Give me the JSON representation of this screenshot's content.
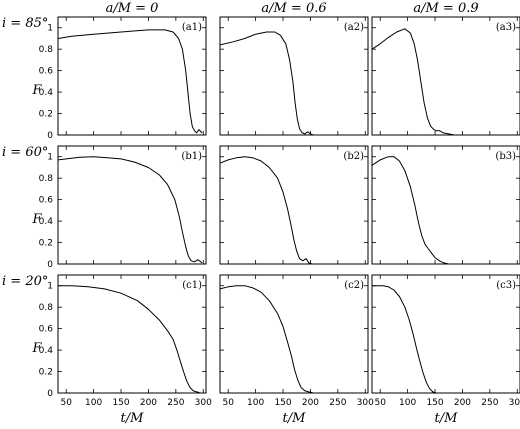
{
  "figure": {
    "column_titles": [
      "a/M = 0",
      "a/M = 0.6",
      "a/M = 0.9"
    ],
    "row_titles": [
      "i = 85°",
      "i = 60°",
      "i = 20°"
    ],
    "ylabel": "F",
    "xlabel": "t/M"
  },
  "chart_data": [
    {
      "type": "line",
      "label": "(a1)",
      "xlim": [
        35,
        305
      ],
      "ylim": [
        0,
        1.1
      ],
      "x": [
        35,
        60,
        100,
        150,
        200,
        230,
        245,
        255,
        262,
        268,
        272,
        276,
        280,
        284,
        288,
        292,
        298
      ],
      "y": [
        0.9,
        0.92,
        0.94,
        0.96,
        0.98,
        0.98,
        0.96,
        0.9,
        0.8,
        0.6,
        0.4,
        0.2,
        0.08,
        0.04,
        0.02,
        0.05,
        0.02
      ]
    },
    {
      "type": "line",
      "label": "(a2)",
      "xlim": [
        35,
        305
      ],
      "ylim": [
        0,
        1.1
      ],
      "x": [
        35,
        60,
        80,
        100,
        120,
        135,
        145,
        155,
        162,
        168,
        172,
        176,
        180,
        185,
        190,
        195,
        200,
        205
      ],
      "y": [
        0.84,
        0.87,
        0.9,
        0.94,
        0.96,
        0.96,
        0.93,
        0.85,
        0.7,
        0.5,
        0.3,
        0.15,
        0.06,
        0.02,
        0.01,
        0.03,
        0.01,
        0.0
      ]
    },
    {
      "type": "line",
      "label": "(a3)",
      "xlim": [
        35,
        305
      ],
      "ylim": [
        0,
        1.1
      ],
      "x": [
        35,
        50,
        65,
        80,
        95,
        105,
        112,
        118,
        124,
        130,
        136,
        142,
        148,
        152,
        158,
        165,
        175,
        185
      ],
      "y": [
        0.8,
        0.85,
        0.91,
        0.96,
        0.99,
        0.95,
        0.85,
        0.7,
        0.5,
        0.3,
        0.16,
        0.08,
        0.05,
        0.04,
        0.04,
        0.02,
        0.01,
        0.0
      ]
    },
    {
      "type": "line",
      "label": "(b1)",
      "xlim": [
        35,
        305
      ],
      "ylim": [
        0,
        1.1
      ],
      "x": [
        35,
        50,
        75,
        100,
        125,
        150,
        175,
        200,
        220,
        235,
        248,
        256,
        262,
        268,
        273,
        278,
        284,
        290,
        298
      ],
      "y": [
        0.97,
        0.98,
        0.995,
        1.0,
        0.99,
        0.98,
        0.95,
        0.9,
        0.83,
        0.74,
        0.6,
        0.45,
        0.3,
        0.16,
        0.07,
        0.03,
        0.02,
        0.04,
        0.01
      ]
    },
    {
      "type": "line",
      "label": "(b2)",
      "xlim": [
        35,
        305
      ],
      "ylim": [
        0,
        1.1
      ],
      "x": [
        35,
        50,
        65,
        80,
        95,
        110,
        125,
        140,
        150,
        158,
        165,
        170,
        175,
        180,
        186,
        192,
        197,
        203
      ],
      "y": [
        0.94,
        0.97,
        0.99,
        1.0,
        0.99,
        0.96,
        0.9,
        0.8,
        0.67,
        0.52,
        0.35,
        0.22,
        0.12,
        0.05,
        0.03,
        0.05,
        0.01,
        0.0
      ]
    },
    {
      "type": "line",
      "label": "(b3)",
      "xlim": [
        35,
        305
      ],
      "ylim": [
        0,
        1.1
      ],
      "x": [
        35,
        50,
        65,
        75,
        85,
        95,
        105,
        113,
        120,
        126,
        132,
        138,
        144,
        150,
        158,
        166,
        175
      ],
      "y": [
        0.92,
        0.97,
        1.0,
        1.0,
        0.96,
        0.87,
        0.72,
        0.55,
        0.38,
        0.26,
        0.18,
        0.14,
        0.1,
        0.06,
        0.03,
        0.01,
        0.0
      ]
    },
    {
      "type": "line",
      "label": "(c1)",
      "xlim": [
        35,
        305
      ],
      "ylim": [
        0,
        1.1
      ],
      "x": [
        35,
        60,
        90,
        120,
        150,
        180,
        200,
        220,
        235,
        245,
        252,
        258,
        264,
        270,
        276,
        282,
        288,
        295
      ],
      "y": [
        1.0,
        1.0,
        0.99,
        0.97,
        0.93,
        0.86,
        0.78,
        0.68,
        0.58,
        0.5,
        0.4,
        0.3,
        0.2,
        0.11,
        0.05,
        0.02,
        0.01,
        0.0
      ]
    },
    {
      "type": "line",
      "label": "(c2)",
      "xlim": [
        35,
        305
      ],
      "ylim": [
        0,
        1.1
      ],
      "x": [
        35,
        50,
        65,
        80,
        95,
        110,
        125,
        140,
        150,
        158,
        165,
        171,
        177,
        183,
        190,
        197,
        205
      ],
      "y": [
        0.97,
        0.99,
        1.0,
        1.0,
        0.98,
        0.94,
        0.86,
        0.74,
        0.62,
        0.48,
        0.35,
        0.22,
        0.12,
        0.05,
        0.02,
        0.01,
        0.0
      ]
    },
    {
      "type": "line",
      "label": "(c3)",
      "xlim": [
        35,
        305
      ],
      "ylim": [
        0,
        1.1
      ],
      "x": [
        35,
        45,
        55,
        65,
        75,
        85,
        95,
        103,
        110,
        116,
        122,
        128,
        134,
        140,
        146,
        152
      ],
      "y": [
        1.0,
        1.0,
        1.0,
        0.99,
        0.96,
        0.9,
        0.8,
        0.68,
        0.55,
        0.42,
        0.3,
        0.19,
        0.1,
        0.04,
        0.01,
        0.0
      ]
    }
  ],
  "axes": {
    "xticks": [
      50,
      100,
      150,
      200,
      250,
      300
    ],
    "xticklabels": [
      "50",
      "100",
      "150",
      "200",
      "250",
      "300"
    ],
    "yticks": [
      0,
      0.2,
      0.4,
      0.6,
      0.8,
      1.0
    ],
    "yticklabels": [
      "0",
      "0.2",
      "0.4",
      "0.6",
      "0.8",
      "1"
    ]
  }
}
